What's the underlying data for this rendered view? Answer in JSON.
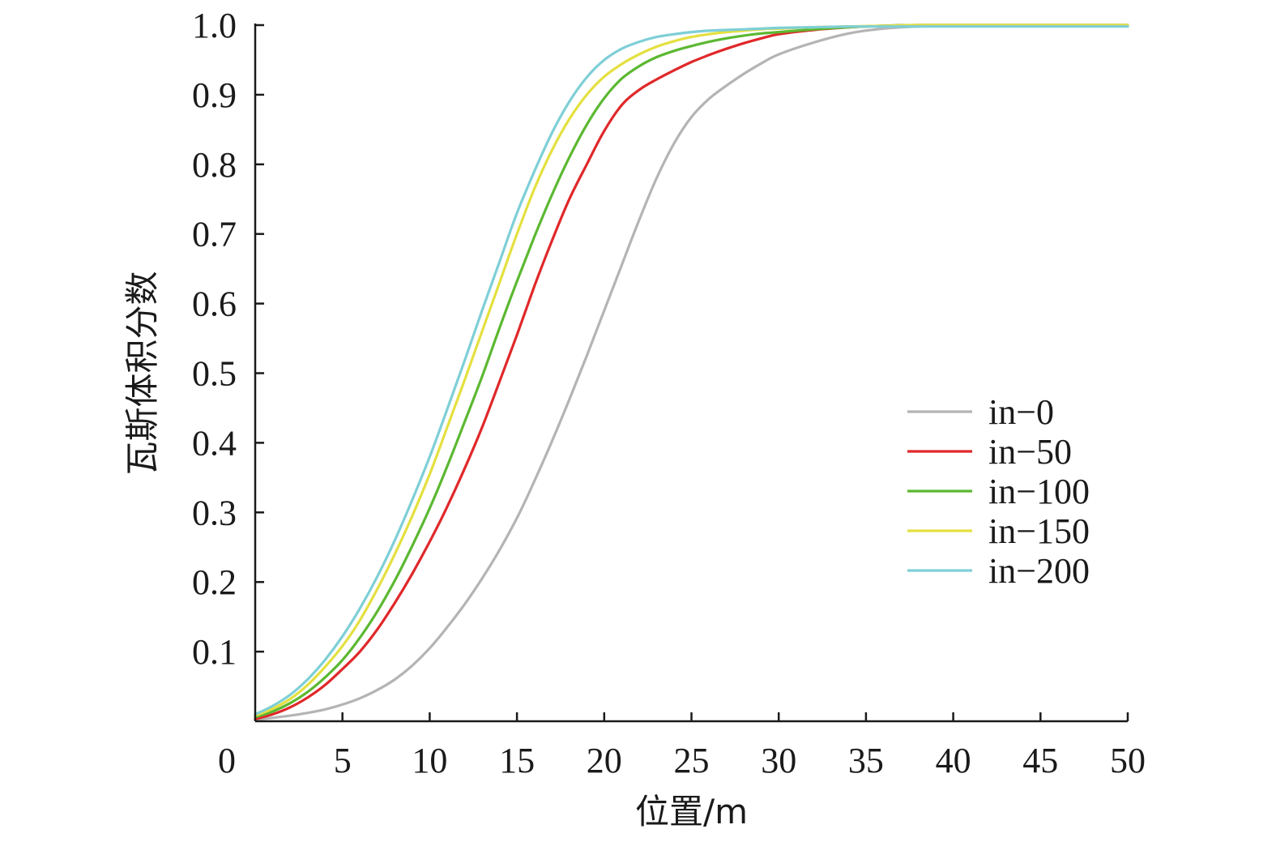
{
  "chart_data": {
    "type": "line",
    "title": "",
    "xlabel": "位置/m",
    "ylabel": "瓦斯体积分数",
    "xlim": [
      0,
      50
    ],
    "ylim": [
      0,
      1.0
    ],
    "x_origin_label": "0",
    "x_ticks": [
      "5",
      "10",
      "15",
      "20",
      "25",
      "30",
      "35",
      "40",
      "45",
      "50"
    ],
    "y_ticks": [
      "0.1",
      "0.2",
      "0.3",
      "0.4",
      "0.5",
      "0.6",
      "0.7",
      "0.8",
      "0.9",
      "1.0"
    ],
    "grid": false,
    "legend_position": "right-middle",
    "x": [
      0,
      1,
      2,
      3,
      4,
      5,
      6,
      7,
      8,
      9,
      10,
      11,
      12,
      13,
      14,
      15,
      16,
      17,
      18,
      19,
      20,
      21,
      22,
      23,
      24,
      25,
      26,
      27,
      28,
      29,
      30,
      32,
      34,
      36,
      38,
      40,
      45,
      50
    ],
    "series": [
      {
        "name": "in−0",
        "color": "#b4b4b4",
        "values": [
          0.002,
          0.005,
          0.008,
          0.012,
          0.017,
          0.024,
          0.033,
          0.045,
          0.06,
          0.08,
          0.105,
          0.135,
          0.168,
          0.205,
          0.246,
          0.292,
          0.345,
          0.402,
          0.462,
          0.525,
          0.59,
          0.655,
          0.72,
          0.78,
          0.83,
          0.868,
          0.894,
          0.913,
          0.93,
          0.945,
          0.958,
          0.975,
          0.988,
          0.995,
          0.998,
          0.999,
          0.999,
          0.999
        ]
      },
      {
        "name": "in−50",
        "color": "#e0282a",
        "values": [
          0.003,
          0.01,
          0.02,
          0.034,
          0.052,
          0.075,
          0.1,
          0.132,
          0.17,
          0.212,
          0.258,
          0.308,
          0.363,
          0.422,
          0.488,
          0.555,
          0.625,
          0.69,
          0.75,
          0.8,
          0.848,
          0.885,
          0.907,
          0.922,
          0.935,
          0.947,
          0.957,
          0.966,
          0.974,
          0.981,
          0.987,
          0.993,
          0.997,
          0.999,
          1.0,
          1.0,
          1.0,
          1.0
        ]
      },
      {
        "name": "in−100",
        "color": "#5cb831",
        "values": [
          0.006,
          0.014,
          0.026,
          0.042,
          0.063,
          0.088,
          0.12,
          0.158,
          0.202,
          0.252,
          0.306,
          0.366,
          0.43,
          0.495,
          0.565,
          0.632,
          0.696,
          0.756,
          0.81,
          0.857,
          0.895,
          0.923,
          0.941,
          0.954,
          0.963,
          0.97,
          0.976,
          0.981,
          0.985,
          0.988,
          0.99,
          0.994,
          0.997,
          0.999,
          1.0,
          1.0,
          1.0,
          1.0
        ]
      },
      {
        "name": "in−150",
        "color": "#e4e040",
        "values": [
          0.008,
          0.018,
          0.032,
          0.052,
          0.078,
          0.108,
          0.145,
          0.19,
          0.24,
          0.295,
          0.355,
          0.422,
          0.49,
          0.56,
          0.63,
          0.7,
          0.765,
          0.82,
          0.865,
          0.9,
          0.926,
          0.944,
          0.958,
          0.969,
          0.977,
          0.983,
          0.987,
          0.99,
          0.992,
          0.994,
          0.995,
          0.997,
          0.998,
          0.999,
          1.0,
          1.0,
          1.0,
          1.0
        ]
      },
      {
        "name": "in−200",
        "color": "#7ecfd6",
        "values": [
          0.01,
          0.022,
          0.038,
          0.06,
          0.088,
          0.122,
          0.162,
          0.208,
          0.26,
          0.318,
          0.38,
          0.448,
          0.518,
          0.59,
          0.66,
          0.73,
          0.79,
          0.845,
          0.89,
          0.925,
          0.95,
          0.966,
          0.976,
          0.983,
          0.987,
          0.99,
          0.992,
          0.993,
          0.994,
          0.995,
          0.996,
          0.997,
          0.998,
          0.998,
          0.998,
          0.998,
          0.998,
          0.998
        ]
      }
    ]
  }
}
